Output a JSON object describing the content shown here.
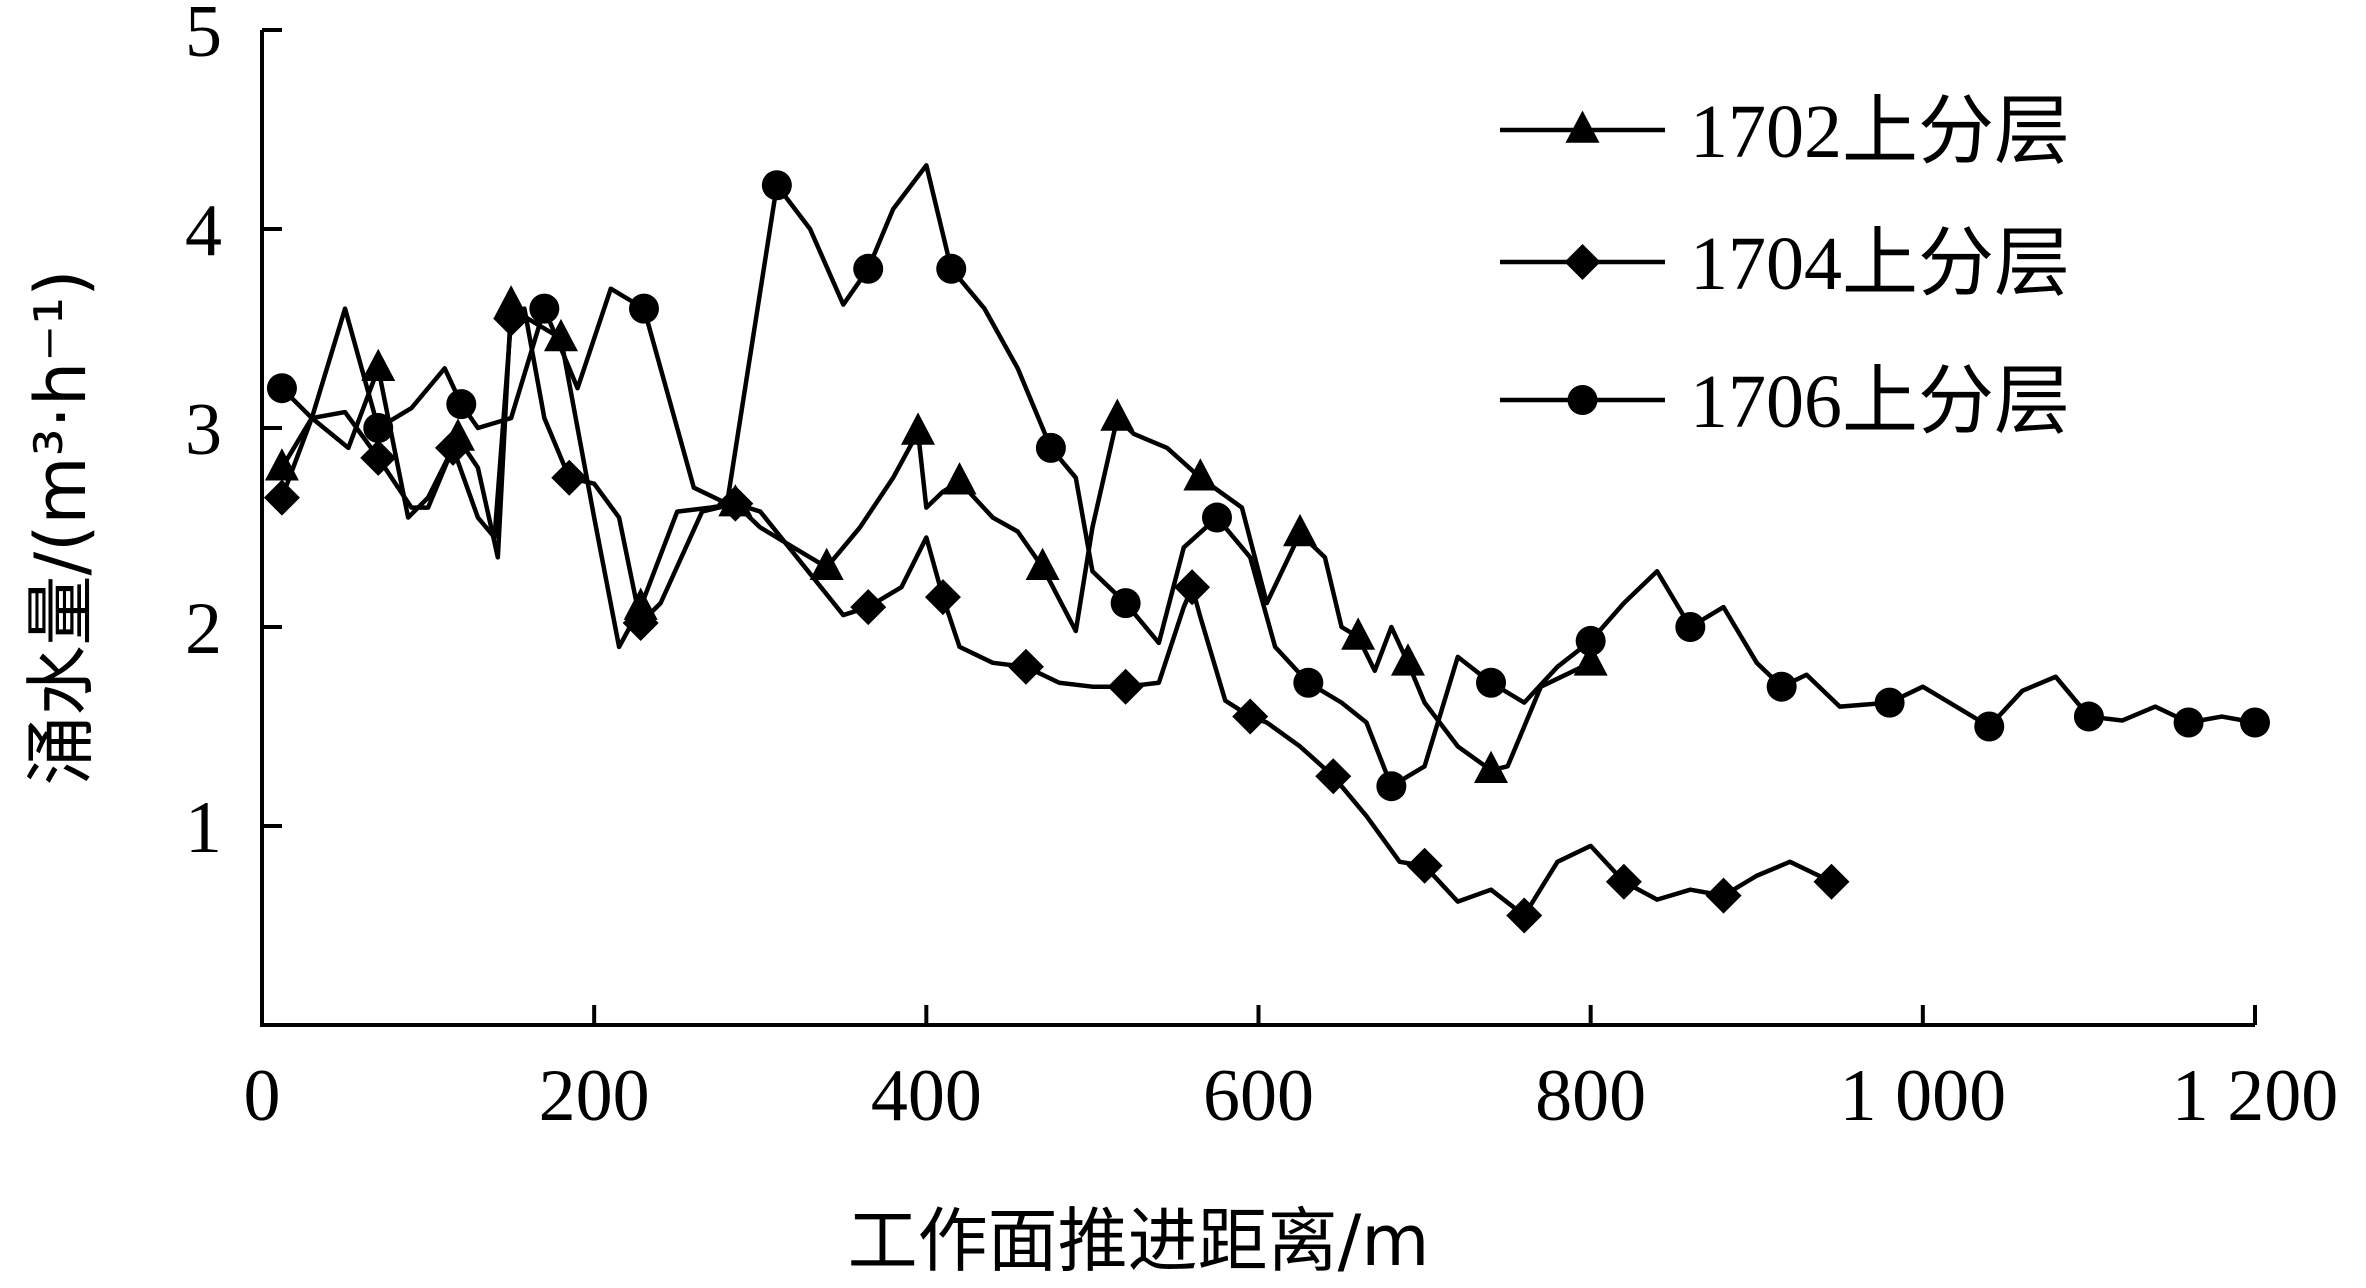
{
  "chart_data": {
    "type": "line",
    "title": "",
    "xlabel": "工作面推进距离/m",
    "ylabel": "涌水量/(m³·h⁻¹)",
    "xlim": [
      0,
      1200
    ],
    "ylim": [
      0,
      5
    ],
    "x_ticks": [
      0,
      200,
      400,
      600,
      800,
      1000,
      1200
    ],
    "x_tick_labels": [
      "0",
      "200",
      "400",
      "600",
      "800",
      "1 000",
      "1 200"
    ],
    "y_ticks": [
      1,
      2,
      3,
      4,
      5
    ],
    "y_tick_labels": [
      "1",
      "2",
      "3",
      "4",
      "5"
    ],
    "grid": false,
    "legend_position": "top-right",
    "series": [
      {
        "name": "1702上分层",
        "marker": "triangle",
        "x": [
          12,
          30,
          52,
          70,
          88,
          100,
          118,
          130,
          142,
          150,
          160,
          170,
          180,
          200,
          215,
          228,
          250,
          270,
          285,
          300,
          320,
          340,
          360,
          380,
          395,
          400,
          410,
          420,
          440,
          455,
          470,
          490,
          500,
          515,
          525,
          545,
          565,
          590,
          605,
          625,
          640,
          650,
          660,
          670,
          680,
          690,
          700,
          720,
          740,
          750,
          770,
          800
        ],
        "y": [
          2.8,
          3.05,
          2.9,
          3.3,
          2.55,
          2.65,
          2.95,
          2.8,
          2.35,
          3.62,
          3.55,
          3.5,
          3.45,
          2.55,
          1.9,
          2.1,
          2.58,
          2.6,
          2.62,
          2.5,
          2.4,
          2.3,
          2.5,
          2.75,
          2.98,
          2.6,
          2.68,
          2.73,
          2.55,
          2.48,
          2.3,
          1.98,
          2.5,
          3.05,
          2.97,
          2.9,
          2.75,
          2.6,
          2.12,
          2.47,
          2.35,
          2.0,
          1.95,
          1.78,
          2.0,
          1.82,
          1.62,
          1.4,
          1.28,
          1.3,
          1.7,
          1.82
        ]
      },
      {
        "name": "1704上分层",
        "marker": "diamond",
        "x": [
          12,
          30,
          50,
          70,
          90,
          100,
          115,
          130,
          140,
          150,
          158,
          170,
          185,
          200,
          215,
          228,
          240,
          265,
          285,
          300,
          350,
          365,
          385,
          400,
          410,
          420,
          440,
          460,
          480,
          500,
          520,
          540,
          555,
          560,
          565,
          580,
          595,
          605,
          625,
          645,
          665,
          685,
          700,
          720,
          740,
          760,
          780,
          800,
          820,
          840,
          860,
          880,
          900,
          920,
          945
        ],
        "y": [
          2.65,
          3.05,
          3.08,
          2.85,
          2.6,
          2.6,
          2.9,
          2.55,
          2.45,
          3.55,
          3.6,
          3.05,
          2.75,
          2.72,
          2.55,
          2.02,
          2.12,
          2.58,
          2.62,
          2.58,
          2.06,
          2.1,
          2.2,
          2.45,
          2.15,
          1.9,
          1.82,
          1.8,
          1.72,
          1.7,
          1.7,
          1.72,
          2.1,
          2.2,
          2.05,
          1.63,
          1.55,
          1.52,
          1.4,
          1.25,
          1.05,
          0.82,
          0.8,
          0.62,
          0.68,
          0.55,
          0.82,
          0.9,
          0.72,
          0.63,
          0.68,
          0.65,
          0.75,
          0.82,
          0.72
        ]
      },
      {
        "name": "1706上分层",
        "marker": "circle",
        "x": [
          12,
          30,
          50,
          70,
          90,
          110,
          120,
          130,
          150,
          170,
          190,
          210,
          230,
          260,
          280,
          310,
          330,
          350,
          365,
          380,
          400,
          415,
          435,
          455,
          475,
          490,
          500,
          520,
          540,
          555,
          575,
          595,
          610,
          630,
          650,
          665,
          680,
          700,
          720,
          740,
          760,
          780,
          800,
          820,
          840,
          860,
          880,
          900,
          915,
          930,
          950,
          980,
          1000,
          1020,
          1040,
          1060,
          1080,
          1100,
          1120,
          1140,
          1160,
          1180,
          1200
        ],
        "y": [
          3.2,
          3.05,
          3.6,
          3.0,
          3.1,
          3.3,
          3.12,
          3.0,
          3.05,
          3.6,
          3.2,
          3.7,
          3.6,
          2.7,
          2.62,
          4.22,
          4.0,
          3.62,
          3.8,
          4.1,
          4.32,
          3.8,
          3.6,
          3.3,
          2.9,
          2.75,
          2.28,
          2.12,
          1.92,
          2.4,
          2.55,
          2.35,
          1.9,
          1.72,
          1.62,
          1.52,
          1.2,
          1.3,
          1.85,
          1.72,
          1.62,
          1.8,
          1.93,
          2.12,
          2.28,
          2.0,
          2.1,
          1.82,
          1.7,
          1.76,
          1.6,
          1.62,
          1.7,
          1.6,
          1.5,
          1.68,
          1.75,
          1.55,
          1.53,
          1.6,
          1.52,
          1.55,
          1.52
        ]
      }
    ]
  }
}
